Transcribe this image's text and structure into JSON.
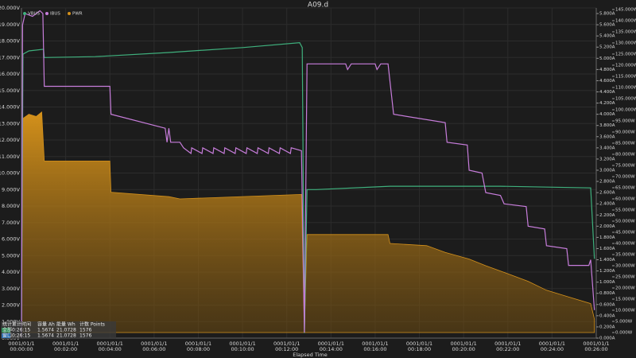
{
  "chart_data": {
    "type": "line",
    "title": "A09.d",
    "x_label": "Elapsed Time",
    "xlim": [
      0,
      1560
    ],
    "xtick_date": "0001/01/1",
    "xticks": [
      {
        "value": 0,
        "label": "00:00:00"
      },
      {
        "value": 120,
        "label": "00:02:00"
      },
      {
        "value": 240,
        "label": "00:04:00"
      },
      {
        "value": 360,
        "label": "00:06:00"
      },
      {
        "value": 480,
        "label": "00:08:00"
      },
      {
        "value": 600,
        "label": "00:10:00"
      },
      {
        "value": 720,
        "label": "00:12:00"
      },
      {
        "value": 840,
        "label": "00:14:00"
      },
      {
        "value": 960,
        "label": "00:16:00"
      },
      {
        "value": 1080,
        "label": "00:18:00"
      },
      {
        "value": 1200,
        "label": "00:20:00"
      },
      {
        "value": 1320,
        "label": "00:22:00"
      },
      {
        "value": 1440,
        "label": "00:24:00"
      },
      {
        "value": 1560,
        "label": "00:26:00"
      }
    ],
    "ylim": [
      0,
      20
    ],
    "yticks": [
      {
        "value": 0,
        "label": "0.000V"
      },
      {
        "value": 1,
        "label": "1.000V"
      },
      {
        "value": 2,
        "label": "2.000V"
      },
      {
        "value": 3,
        "label": "3.000V"
      },
      {
        "value": 4,
        "label": "4.000V"
      },
      {
        "value": 5,
        "label": "5.000V"
      },
      {
        "value": 6,
        "label": "6.000V"
      },
      {
        "value": 7,
        "label": "7.000V"
      },
      {
        "value": 8,
        "label": "8.000V"
      },
      {
        "value": 9,
        "label": "9.000V"
      },
      {
        "value": 10,
        "label": "10.000V"
      },
      {
        "value": 11,
        "label": "11.000V"
      },
      {
        "value": 12,
        "label": "12.000V"
      },
      {
        "value": 13,
        "label": "13.000V"
      },
      {
        "value": 14,
        "label": "14.000V"
      },
      {
        "value": 15,
        "label": "15.000V"
      },
      {
        "value": 16,
        "label": "16.000V"
      },
      {
        "value": 17,
        "label": "17.000V"
      },
      {
        "value": 18,
        "label": "18.000V"
      },
      {
        "value": 19,
        "label": "19.000V"
      },
      {
        "value": 20,
        "label": "20.000V"
      }
    ],
    "y2lim": [
      0,
      5.9
    ],
    "y2ticks": [
      {
        "value": 0,
        "label": "0.000A"
      },
      {
        "value": 0.2,
        "label": "0.200A"
      },
      {
        "value": 0.4,
        "label": "0.400A"
      },
      {
        "value": 0.6,
        "label": "0.600A"
      },
      {
        "value": 0.8,
        "label": "0.800A"
      },
      {
        "value": 1,
        "label": "1.000A"
      },
      {
        "value": 1.2,
        "label": "1.200A"
      },
      {
        "value": 1.4,
        "label": "1.400A"
      },
      {
        "value": 1.6,
        "label": "1.600A"
      },
      {
        "value": 1.8,
        "label": "1.800A"
      },
      {
        "value": 2,
        "label": "2.000A"
      },
      {
        "value": 2.2,
        "label": "2.200A"
      },
      {
        "value": 2.4,
        "label": "2.400A"
      },
      {
        "value": 2.6,
        "label": "2.600A"
      },
      {
        "value": 2.8,
        "label": "2.800A"
      },
      {
        "value": 3,
        "label": "3.000A"
      },
      {
        "value": 3.2,
        "label": "3.200A"
      },
      {
        "value": 3.4,
        "label": "3.400A"
      },
      {
        "value": 3.6,
        "label": "3.600A"
      },
      {
        "value": 3.8,
        "label": "3.800A"
      },
      {
        "value": 4,
        "label": "4.000A"
      },
      {
        "value": 4.2,
        "label": "4.200A"
      },
      {
        "value": 4.4,
        "label": "4.400A"
      },
      {
        "value": 4.6,
        "label": "4.600A"
      },
      {
        "value": 4.8,
        "label": "4.800A"
      },
      {
        "value": 5,
        "label": "5.000A"
      },
      {
        "value": 5.2,
        "label": "5.200A"
      },
      {
        "value": 5.4,
        "label": "5.400A"
      },
      {
        "value": 5.6,
        "label": "5.600A"
      },
      {
        "value": 5.8,
        "label": "5.800A"
      }
    ],
    "y3lim": [
      -2.5,
      145.7
    ],
    "y3ticks": [
      {
        "value": 0,
        "label": "0.000W"
      },
      {
        "value": 5,
        "label": "5.000W"
      },
      {
        "value": 10,
        "label": "10.000W"
      },
      {
        "value": 15,
        "label": "15.000W"
      },
      {
        "value": 20,
        "label": "20.000W"
      },
      {
        "value": 25,
        "label": "25.000W"
      },
      {
        "value": 30,
        "label": "30.000W"
      },
      {
        "value": 35,
        "label": "35.000W"
      },
      {
        "value": 40,
        "label": "40.000W"
      },
      {
        "value": 45,
        "label": "45.000W"
      },
      {
        "value": 50,
        "label": "50.000W"
      },
      {
        "value": 55,
        "label": "55.000W"
      },
      {
        "value": 60,
        "label": "60.000W"
      },
      {
        "value": 65,
        "label": "65.000W"
      },
      {
        "value": 70,
        "label": "70.000W"
      },
      {
        "value": 75,
        "label": "75.000W"
      },
      {
        "value": 80,
        "label": "80.000W"
      },
      {
        "value": 85,
        "label": "85.000W"
      },
      {
        "value": 90,
        "label": "90.000W"
      },
      {
        "value": 95,
        "label": "95.000W"
      },
      {
        "value": 100,
        "label": "100.000W"
      },
      {
        "value": 105,
        "label": "105.000W"
      },
      {
        "value": 110,
        "label": "110.000W"
      },
      {
        "value": 115,
        "label": "115.000W"
      },
      {
        "value": 120,
        "label": "120.000W"
      },
      {
        "value": 125,
        "label": "125.000W"
      },
      {
        "value": 130,
        "label": "130.000W"
      },
      {
        "value": 135,
        "label": "135.000W"
      },
      {
        "value": 140,
        "label": "140.000W"
      },
      {
        "value": 145,
        "label": "145.000W"
      }
    ],
    "grid": true,
    "series": [
      {
        "name": "PWR",
        "color": "#d4911b",
        "axis": "y3",
        "area": true,
        "x": [
          0,
          3,
          20,
          40,
          55,
          62,
          240,
          243,
          400,
          430,
          760,
          768,
          775,
          995,
          1000,
          1100,
          1150,
          1215,
          1260,
          1310,
          1375,
          1425,
          1485,
          1545,
          1555
        ],
        "values": [
          0,
          96,
          98,
          97,
          99,
          77,
          77,
          63,
          61,
          60,
          62,
          1,
          44,
          44,
          40,
          39,
          36,
          33,
          30,
          27,
          23,
          19,
          16,
          13,
          6
        ]
      },
      {
        "name": "VBUS",
        "color": "#3fb07d",
        "axis": "y",
        "x": [
          0,
          4,
          20,
          60,
          62,
          200,
          400,
          600,
          755,
          762,
          768,
          775,
          800,
          1000,
          1300,
          1545,
          1555
        ],
        "values": [
          0,
          17.2,
          17.4,
          17.5,
          17.0,
          17.05,
          17.3,
          17.6,
          17.9,
          17.6,
          0.3,
          9.0,
          9.0,
          9.2,
          9.2,
          9.1,
          4.8
        ]
      },
      {
        "name": "IBUS",
        "color": "#c77ddb",
        "axis": "y2",
        "x": [
          0,
          3,
          10,
          30,
          50,
          58,
          62,
          240,
          243,
          390,
          395,
          400,
          405,
          430,
          440,
          460,
          462,
          490,
          492,
          520,
          522,
          550,
          552,
          580,
          582,
          610,
          612,
          640,
          642,
          670,
          672,
          700,
          702,
          730,
          732,
          760,
          768,
          775,
          880,
          885,
          895,
          960,
          965,
          975,
          995,
          1010,
          1150,
          1155,
          1210,
          1215,
          1250,
          1260,
          1300,
          1310,
          1370,
          1375,
          1420,
          1425,
          1480,
          1485,
          1540,
          1545,
          1555
        ],
        "values": [
          0,
          5.6,
          5.8,
          5.75,
          5.85,
          5.8,
          4.5,
          4.5,
          4.0,
          3.75,
          3.5,
          3.75,
          3.5,
          3.5,
          3.4,
          3.3,
          3.4,
          3.3,
          3.4,
          3.3,
          3.4,
          3.3,
          3.4,
          3.3,
          3.4,
          3.3,
          3.4,
          3.3,
          3.4,
          3.3,
          3.4,
          3.3,
          3.4,
          3.3,
          3.4,
          3.35,
          0.1,
          4.9,
          4.9,
          4.8,
          4.9,
          4.9,
          4.8,
          4.9,
          4.9,
          4.0,
          3.85,
          3.5,
          3.45,
          3.0,
          2.95,
          2.6,
          2.55,
          2.4,
          2.35,
          2.0,
          1.95,
          1.65,
          1.6,
          1.3,
          1.3,
          1.4,
          0.5
        ]
      }
    ],
    "legend": "top-left",
    "table": {
      "header": [
        "统计",
        "累计时间",
        "容量 Ah",
        "能量 Wh",
        "计数 Points"
      ],
      "rows": [
        [
          "全部",
          "0:26:15",
          "1.5674",
          "21.0728",
          "1576"
        ],
        [
          "窗口",
          "0:26:15",
          "1.5674",
          "21.0728",
          "1576"
        ]
      ]
    }
  }
}
